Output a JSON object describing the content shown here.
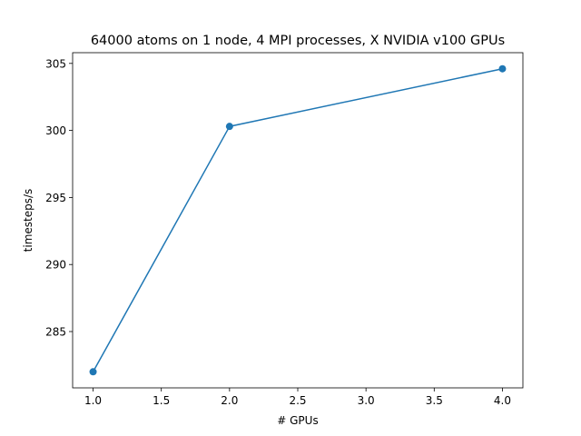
{
  "chart_data": {
    "type": "line",
    "title": "64000 atoms on 1 node, 4 MPI processes, X NVIDIA v100 GPUs",
    "xlabel": "# GPUs",
    "ylabel": "timesteps/s",
    "xlim": [
      0.85,
      4.15
    ],
    "ylim": [
      280.8,
      305.8
    ],
    "xticks": [
      1.0,
      1.5,
      2.0,
      2.5,
      3.0,
      3.5,
      4.0
    ],
    "xtick_labels": [
      "1.0",
      "1.5",
      "2.0",
      "2.5",
      "3.0",
      "3.5",
      "4.0"
    ],
    "yticks": [
      285,
      290,
      295,
      300,
      305
    ],
    "ytick_labels": [
      "285",
      "290",
      "295",
      "300",
      "305"
    ],
    "grid": false,
    "series": [
      {
        "x": [
          1,
          2,
          4
        ],
        "y": [
          282.0,
          300.3,
          304.6
        ],
        "color": "#1f77b4",
        "marker": "circle"
      }
    ]
  }
}
